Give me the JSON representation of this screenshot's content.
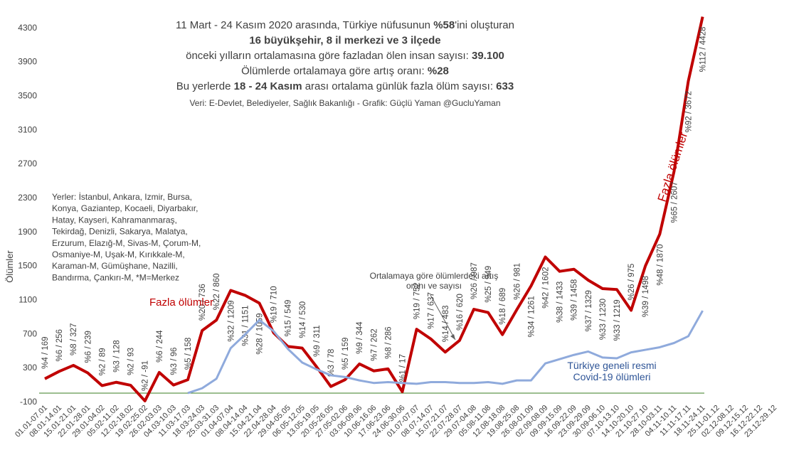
{
  "chart_data": {
    "type": "line",
    "title": [
      [
        {
          "text": "11 Mart - 24 Kasım 2020 arasında, Türkiye nüfusunun ",
          "bold": false
        },
        {
          "text": "%58",
          "bold": true
        },
        {
          "text": "'ini oluşturan",
          "bold": false
        }
      ],
      [
        {
          "text": "16 büyükşehir, 8 il merkezi ve 3 ilçede",
          "bold": true
        }
      ],
      [
        {
          "text": "önceki yılların ortalamasına göre fazladan ölen insan sayısı: ",
          "bold": false
        },
        {
          "text": "39.100",
          "bold": true
        }
      ],
      [
        {
          "text": "Ölümlerde ortalamaya göre artış oranı: ",
          "bold": false
        },
        {
          "text": "%28",
          "bold": true
        }
      ],
      [
        {
          "text": "Bu yerlerde ",
          "bold": false
        },
        {
          "text": "18 - 24 Kasım",
          "bold": true
        },
        {
          "text": " arası ortalama günlük fazla ölüm sayısı: ",
          "bold": false
        },
        {
          "text": "633",
          "bold": true
        }
      ]
    ],
    "subtitle": "Veri: E-Devlet, Belediyeler, Sağlık Bakanlığı - Grafik: Güçlü Yaman @GucluYaman",
    "notes": [
      "Yerler: İstanbul, Ankara, Izmir, Bursa,",
      "Konya, Gaziantep, Kocaeli, Diyarbakır,",
      "Hatay, Kayseri, Kahramanmaraş,",
      "Tekirdağ, Denizli, Sakarya, Malatya,",
      "Erzurum, Elazığ-M, Sivas-M, Çorum-M,",
      "Osmaniye-M, Uşak-M, Kırıkkale-M,",
      "Karaman-M, Gümüşhane, Nazilli,",
      "Bandırma, Çankırı-M, *M=Merkez"
    ],
    "annotation": "Ortalamaya  göre ölümlerdeki artış oranı ve sayısı",
    "y_label": "Ölümler",
    "categories": [
      "01.01-07.01",
      "08.01-14.01",
      "15.01-21.01",
      "22.01-28.01",
      "29.01-04.02",
      "05.02-11.02",
      "12.02-18.02",
      "19.02-25.02",
      "26.02-03.03",
      "04.03-10.03",
      "11.03-17.03",
      "18.03-24.03",
      "25.03-31.03",
      "01.04-07.04",
      "08.04-14.04",
      "15.04-21.04",
      "22.04-28.04",
      "29.04-05.05",
      "06.05-12.05",
      "13.05-19.05",
      "20.05-26.05",
      "27.05-02.06",
      "03.06-09.06",
      "10.06-16.06",
      "17.06-23.06",
      "24.06-30.06",
      "01.07-07.07",
      "08.07-14.07",
      "15.07-21.07",
      "22.07-28.07",
      "29.07-04.08",
      "05.08-11.08",
      "12.08-18.08",
      "19.08-25.08",
      "26.08-01.09",
      "02.09-08.09",
      "09.09-15.09",
      "16.09-22.09",
      "23.09-29.09",
      "30.09-06.10",
      "07.10-13.10",
      "14.10-20.10",
      "21.10-27.10",
      "28.10-03.11",
      "04.11-10.11",
      "11.11-17.11",
      "18.11-24.11",
      "25.11-01.12",
      "02.12-08.12",
      "09.12-15.12",
      "16.12-22.12",
      "23.12-29.12"
    ],
    "series": [
      {
        "name": "Fazla ölümler",
        "color": "#c00000",
        "values": [
          169,
          256,
          327,
          239,
          89,
          128,
          93,
          -91,
          244,
          96,
          158,
          736,
          860,
          1209,
          1151,
          1059,
          710,
          549,
          530,
          311,
          78,
          159,
          344,
          262,
          286,
          17,
          752,
          637,
          483,
          620,
          987,
          949,
          689,
          981,
          1261,
          1602,
          1433,
          1458,
          1329,
          1230,
          1219,
          975,
          1498,
          1870,
          2607,
          3672,
          4428,
          null,
          null,
          null,
          null,
          null
        ],
        "value_labels": [
          "%4 / 169",
          "%6 / 256",
          "%8 / 327",
          "%6 / 239",
          "%2 / 89",
          "%3 / 128",
          "%2 / 93",
          "%2 / -91",
          "%6 / 244",
          "%3 / 96",
          "%5 / 158",
          "%20 / 736",
          "%22 / 860",
          "%32 / 1209",
          "%31 / 1151",
          "%28 / 1059",
          "%19 / 710",
          "%15 / 549",
          "%14 / 530",
          "%9 / 311",
          "%3 / 78",
          "%5 / 159",
          "%9 / 344",
          "%7 / 262",
          "%8 / 286",
          "%1 / 17",
          "%19 / 752",
          "%17 / 637",
          "%14 / 483",
          "%16 / 620",
          "%26 / 987",
          "%25 / 949",
          "%18 / 689",
          "%26 / 981",
          "%34 / 1261",
          "%42 / 1602",
          "%38 / 1433",
          "%39 / 1458",
          "%37 / 1329",
          "%33 / 1230",
          "%33 / 1219",
          "%26 / 975",
          "%39 / 1498",
          "%48 / 1870",
          "%65 / 2607",
          "%92 / 3672",
          "%112 / 4428",
          null,
          null,
          null,
          null,
          null
        ]
      },
      {
        "name": "Türkiye geneli resmi Covid-19 ölümleri",
        "color": "#8faadc",
        "values": [
          null,
          null,
          null,
          null,
          null,
          null,
          null,
          null,
          null,
          null,
          1,
          58,
          170,
          530,
          690,
          860,
          730,
          520,
          360,
          280,
          210,
          190,
          150,
          120,
          130,
          120,
          110,
          130,
          130,
          120,
          120,
          130,
          110,
          150,
          150,
          350,
          400,
          450,
          490,
          420,
          410,
          480,
          510,
          540,
          590,
          670,
          970,
          null,
          null,
          null,
          null,
          null
        ]
      }
    ],
    "ylim": [
      -100,
      4500
    ],
    "yticks": [
      -100,
      300,
      700,
      1100,
      1500,
      1900,
      2300,
      2700,
      3100,
      3500,
      3900,
      4300
    ],
    "grid": false
  }
}
